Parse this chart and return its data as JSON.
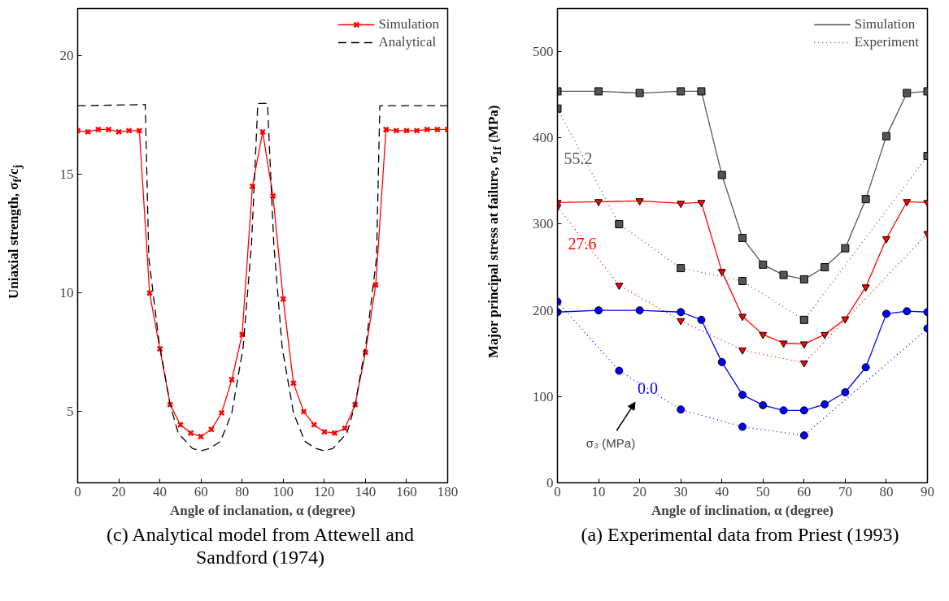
{
  "chart_data": [
    {
      "type": "line",
      "xlabel": "Angle of inclanation, α (degree)",
      "ylabel": "Uniaxial strength, σ$_{f}$/c$_{j}$",
      "annotations": [
        "(c) Analytical model from Attewell and Sandford (1974)"
      ],
      "xlim": [
        0,
        180
      ],
      "ylim": [
        2,
        22
      ],
      "xticks": [
        0,
        20,
        40,
        60,
        80,
        100,
        120,
        140,
        160,
        180
      ],
      "yticks": [
        5,
        10,
        15,
        20
      ],
      "grid": false,
      "legend": "top right",
      "series": [
        {
          "name": "Simulation",
          "color": "#ff0000",
          "marker": "cross",
          "line_style": "solid",
          "x": [
            0,
            5,
            10,
            15,
            20,
            25,
            30,
            35,
            40,
            45,
            50,
            55,
            60,
            65,
            70,
            75,
            80,
            85,
            90,
            95,
            100,
            105,
            110,
            115,
            120,
            125,
            130,
            135,
            140,
            145,
            150,
            155,
            160,
            165,
            170,
            175,
            180
          ],
          "values": [
            16.85,
            16.8,
            16.9,
            16.9,
            16.8,
            16.85,
            16.85,
            10.0,
            7.65,
            5.3,
            4.45,
            4.1,
            3.95,
            4.25,
            4.95,
            6.35,
            8.25,
            14.5,
            16.8,
            14.1,
            9.75,
            6.2,
            5.0,
            4.45,
            4.15,
            4.1,
            4.3,
            5.3,
            7.5,
            10.35,
            16.9,
            16.85,
            16.85,
            16.85,
            16.9,
            16.9,
            16.9
          ]
        },
        {
          "name": "Analytical",
          "color": "#000000",
          "marker": "none",
          "line_style": "dashed",
          "x": [
            0,
            32.9,
            34.6,
            39.5,
            45,
            48.9,
            55.8,
            60,
            64.2,
            69.5,
            75,
            80.5,
            84.6,
            87.4,
            87.6,
            92.4,
            92.6,
            95.4,
            99.5,
            105,
            110.5,
            115.8,
            120,
            124.2,
            131,
            135,
            140.5,
            145.4,
            147,
            180
          ],
          "values": [
            17.9,
            17.95,
            11.5,
            8.0,
            5.3,
            4.1,
            3.45,
            3.35,
            3.45,
            3.75,
            4.95,
            7.7,
            12.1,
            17.5,
            18.0,
            18.0,
            17.5,
            12.1,
            7.7,
            4.95,
            3.75,
            3.45,
            3.35,
            3.45,
            4.1,
            5.3,
            8.0,
            11.5,
            17.9,
            17.9
          ]
        }
      ]
    },
    {
      "type": "line",
      "xlabel": "Angle of inclination, α (degree)",
      "ylabel": "Major principal stress at failure, σ$_{1f}$ (MPa)",
      "annotations": [
        "55.2",
        "27.6",
        "0.0",
        "σ₃ (MPa)",
        "(a) Experimental data from Priest (1993)"
      ],
      "xlim": [
        0,
        90
      ],
      "ylim": [
        0,
        550
      ],
      "xticks": [
        0,
        10,
        20,
        30,
        40,
        50,
        60,
        70,
        80,
        90
      ],
      "yticks": [
        0,
        100,
        200,
        300,
        400,
        500
      ],
      "grid": false,
      "legend": "top right",
      "series": [
        {
          "name": "Simulation",
          "color": "#555555",
          "marker": "square",
          "line_style": "solid",
          "x": [
            0,
            10,
            20,
            30,
            35,
            40,
            45,
            50,
            55,
            60,
            65,
            70,
            75,
            80,
            85,
            90
          ],
          "values": [
            454,
            454,
            452,
            454,
            454,
            357,
            284,
            253,
            241,
            236,
            250,
            272,
            329,
            402,
            452,
            454
          ]
        },
        {
          "name": "Experiment",
          "color": "#555555",
          "marker": "square",
          "line_style": "dotted",
          "x": [
            0,
            15,
            30,
            45,
            60,
            90
          ],
          "values": [
            434,
            300,
            249,
            234,
            189,
            379
          ]
        },
        {
          "color": "#ff0000",
          "marker": "triangle",
          "line_style": "solid",
          "x": [
            0,
            10,
            20,
            30,
            35,
            40,
            45,
            50,
            55,
            60,
            65,
            70,
            75,
            80,
            85,
            90
          ],
          "values": [
            325,
            326,
            327,
            324,
            325,
            245,
            193,
            172,
            162,
            161,
            172,
            190,
            227,
            283,
            326,
            325
          ]
        },
        {
          "color": "#ff0000",
          "marker": "triangle",
          "line_style": "dotted",
          "x": [
            0,
            15,
            30,
            45,
            60,
            90
          ],
          "values": [
            320,
            229,
            188,
            154,
            139,
            289
          ]
        },
        {
          "color": "#0000ff",
          "marker": "circle",
          "line_style": "solid",
          "x": [
            0,
            10,
            20,
            30,
            35,
            40,
            45,
            50,
            55,
            60,
            65,
            70,
            75,
            80,
            85,
            90
          ],
          "values": [
            198,
            200,
            200,
            198,
            189,
            140,
            102,
            90,
            84,
            84,
            91,
            105,
            134,
            196,
            199,
            198
          ]
        },
        {
          "color": "#0000ff",
          "marker": "circle",
          "line_style": "dotted",
          "x": [
            0,
            15,
            30,
            45,
            60,
            90
          ],
          "values": [
            210,
            130,
            85,
            65,
            55,
            179
          ]
        }
      ]
    }
  ]
}
